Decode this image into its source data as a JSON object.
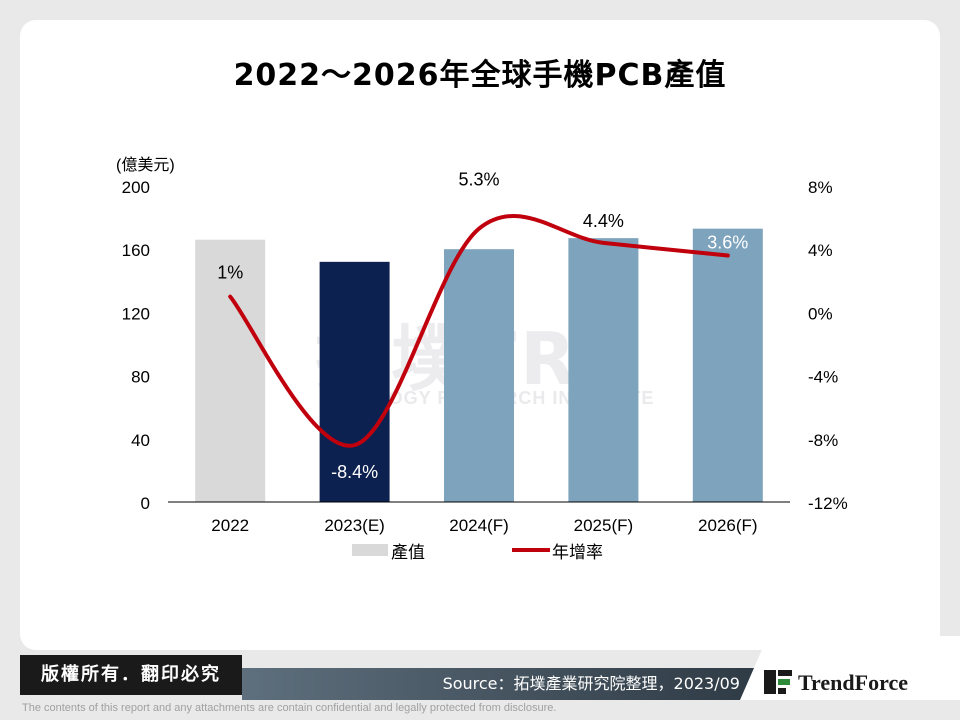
{
  "title": "2022～2026年全球手機PCB產值",
  "chart_data": {
    "type": "bar",
    "categories": [
      "2022",
      "2023(E)",
      "2024(F)",
      "2025(F)",
      "2026(F)"
    ],
    "series": [
      {
        "name": "產值",
        "type": "bar",
        "axis": "left",
        "values": [
          166,
          152,
          160,
          167,
          173
        ],
        "colors": [
          "#d9d9d9",
          "#0d2150",
          "#7da3bd",
          "#7da3bd",
          "#7da3bd"
        ]
      },
      {
        "name": "年增率",
        "type": "line",
        "axis": "right",
        "values": [
          1.0,
          -8.4,
          5.3,
          4.4,
          3.6
        ],
        "labels": [
          "1%",
          "-8.4%",
          "5.3%",
          "4.4%",
          "3.6%"
        ],
        "color": "#c0000d"
      }
    ],
    "y_left": {
      "unit": "(億美元)",
      "ylim": [
        0,
        200
      ],
      "ticks": [
        "200",
        "160",
        "120",
        "80",
        "40",
        "0"
      ]
    },
    "y_right": {
      "ylim": [
        -12,
        8
      ],
      "ticks": [
        "8%",
        "4%",
        "0%",
        "-4%",
        "-8%",
        "-12%"
      ]
    },
    "legend": {
      "placement": "bottom",
      "items": [
        "產值",
        "年增率"
      ]
    },
    "grid": false
  },
  "watermark": {
    "main": "拓墣TRi",
    "sub": "TOPOLOGY RESEARCH INSTITUTE"
  },
  "footer": {
    "badge": "版權所有．翻印必究",
    "source": "Source：拓墣產業研究院整理，2023/09",
    "logo": "TrendForce",
    "disclaimer": "The contents of this report and any attachments are contain confidential and legally protected from disclosure."
  }
}
